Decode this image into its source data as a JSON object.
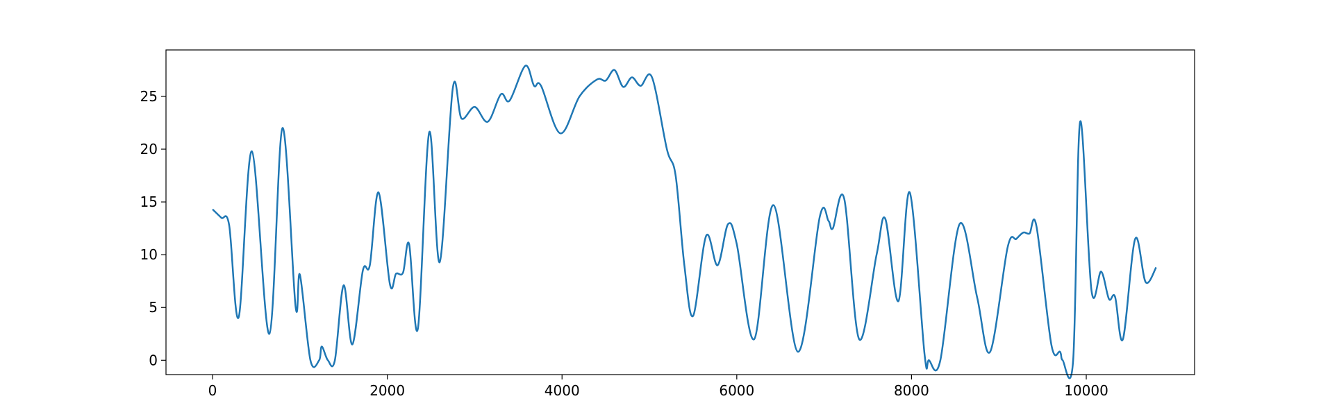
{
  "chart_data": {
    "type": "line",
    "x": [
      0,
      100,
      190,
      300,
      450,
      650,
      800,
      950,
      1000,
      1120,
      1220,
      1250,
      1320,
      1400,
      1500,
      1600,
      1720,
      1800,
      1900,
      2030,
      2100,
      2180,
      2250,
      2350,
      2480,
      2600,
      2750,
      2850,
      3000,
      3150,
      3300,
      3400,
      3580,
      3680,
      3760,
      3980,
      4200,
      4400,
      4500,
      4600,
      4700,
      4800,
      4900,
      5030,
      5200,
      5300,
      5400,
      5500,
      5650,
      5780,
      5900,
      6000,
      6200,
      6420,
      6700,
      6950,
      7050,
      7100,
      7230,
      7400,
      7600,
      7700,
      7850,
      7980,
      8150,
      8200,
      8330,
      8550,
      8750,
      8900,
      9100,
      9200,
      9280,
      9350,
      9430,
      9600,
      9700,
      9730,
      9850,
      9930,
      10060,
      10170,
      10260,
      10330,
      10420,
      10560,
      10680,
      10800
    ],
    "series": [
      {
        "color": "#1f77b4",
        "values": [
          14.3,
          13.5,
          12.8,
          4.1,
          19.8,
          2.5,
          22,
          5.1,
          8.1,
          0,
          0,
          1.3,
          0,
          0,
          7.1,
          1.5,
          8.5,
          9,
          15.9,
          7.2,
          8.2,
          8.3,
          11,
          3,
          21.6,
          9.3,
          25.8,
          22.9,
          24,
          22.6,
          25.2,
          24.6,
          27.9,
          26,
          26,
          21.5,
          25,
          26.6,
          26.5,
          27.5,
          25.9,
          26.8,
          26,
          26.8,
          20,
          17.5,
          9,
          4.2,
          11.8,
          9,
          12.9,
          11,
          2,
          14.7,
          0.8,
          13.6,
          13.2,
          12.5,
          15.3,
          2,
          10,
          13.4,
          5.6,
          15.9,
          0.5,
          0,
          0,
          12.9,
          6,
          0.8,
          10.7,
          11.5,
          12.1,
          12,
          12.7,
          1.5,
          0.8,
          0,
          0,
          22.6,
          6.6,
          8.4,
          5.8,
          6,
          2,
          11.5,
          7.4,
          8.8
        ]
      }
    ],
    "xlim": [
      -533,
      11240
    ],
    "ylim": [
      -1.36,
      29.4
    ],
    "xticks": [
      0,
      2000,
      4000,
      6000,
      8000,
      10000
    ],
    "yticks": [
      0,
      5,
      10,
      15,
      20,
      25
    ]
  }
}
